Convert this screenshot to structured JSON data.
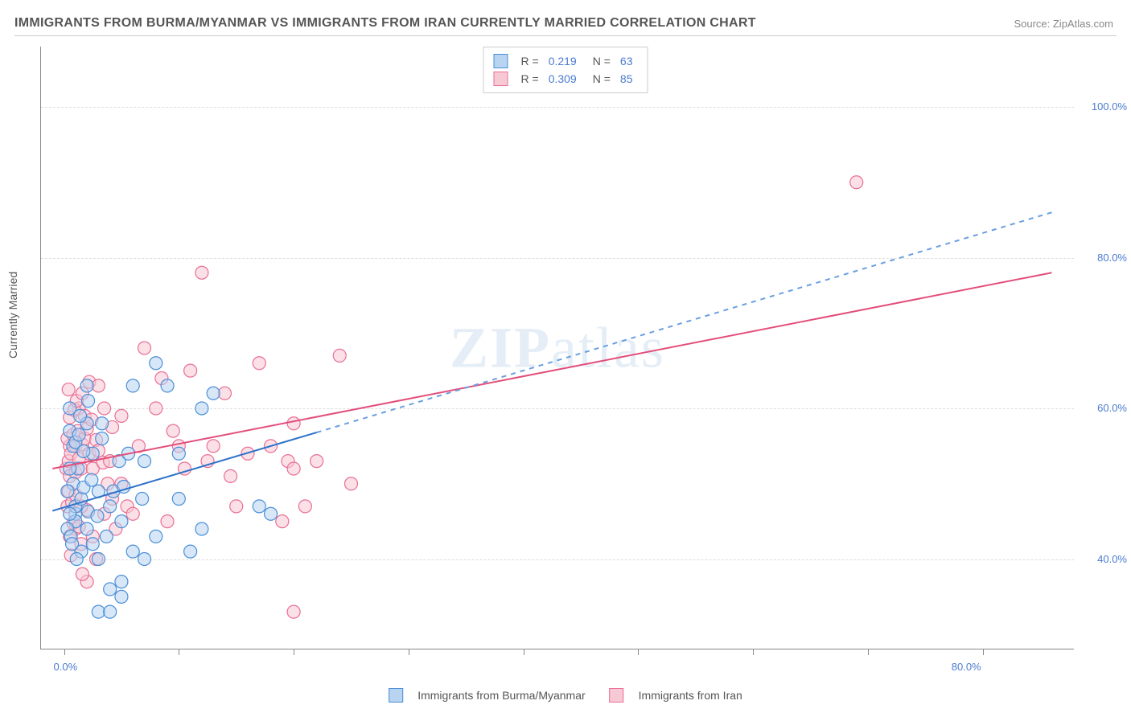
{
  "title": "IMMIGRANTS FROM BURMA/MYANMAR VS IMMIGRANTS FROM IRAN CURRENTLY MARRIED CORRELATION CHART",
  "source": "Source: ZipAtlas.com",
  "axis": {
    "y_title": "Currently Married",
    "y_ticks": [
      40.0,
      60.0,
      80.0,
      100.0
    ],
    "y_tick_labels": [
      "40.0%",
      "60.0%",
      "80.0%",
      "100.0%"
    ],
    "y_range": [
      28,
      108
    ],
    "x_ticks": [
      0,
      10,
      20,
      30,
      40,
      50,
      60,
      70,
      80
    ],
    "x_tick_labels_shown": {
      "0": "0.0%",
      "80": "80.0%"
    },
    "x_range": [
      -2,
      88
    ]
  },
  "colors": {
    "series_a_fill": "#b8d4f0",
    "series_a_stroke": "#4a8fd8",
    "series_b_fill": "#f7c9d4",
    "series_b_stroke": "#e96f94",
    "line_a": "#2f73c9",
    "line_a_dash": "#6a9fe0",
    "line_b": "#e34d7a",
    "grid": "#dddddd",
    "axis": "#888888",
    "text_blue": "#4a7bd0",
    "background": "#ffffff"
  },
  "marker_radius": 8,
  "stroke_width": 1.2,
  "line_width": 2,
  "legend_top": {
    "rows": [
      {
        "swatch_fill": "#b8d4f0",
        "swatch_stroke": "#4a8fd8",
        "r_label": "R =",
        "r_val": "0.219",
        "n_label": "N =",
        "n_val": "63"
      },
      {
        "swatch_fill": "#f7c9d4",
        "swatch_stroke": "#e96f94",
        "r_label": "R =",
        "r_val": "0.309",
        "n_label": "N =",
        "n_val": "85"
      }
    ]
  },
  "legend_bottom": {
    "items": [
      {
        "swatch_fill": "#b8d4f0",
        "swatch_stroke": "#4a8fd8",
        "label": "Immigrants from Burma/Myanmar"
      },
      {
        "swatch_fill": "#f7c9d4",
        "swatch_stroke": "#e96f94",
        "label": "Immigrants from Iran"
      }
    ]
  },
  "watermark": {
    "pre": "ZIP",
    "post": "atlas"
  },
  "series_a": {
    "name": "Immigrants from Burma/Myanmar",
    "points": [
      [
        0.5,
        57
      ],
      [
        1,
        46
      ],
      [
        1,
        47
      ],
      [
        1.5,
        48
      ],
      [
        1,
        45
      ],
      [
        2,
        44
      ],
      [
        0.8,
        50
      ],
      [
        1.2,
        52
      ],
      [
        2,
        58
      ],
      [
        1.5,
        41
      ],
      [
        2.5,
        42
      ],
      [
        3,
        40
      ],
      [
        3,
        49
      ],
      [
        4,
        47
      ],
      [
        4,
        36
      ],
      [
        5,
        37
      ],
      [
        5,
        35
      ],
      [
        3,
        33
      ],
      [
        4,
        33
      ],
      [
        5,
        45
      ],
      [
        6,
        41
      ],
      [
        6,
        63
      ],
      [
        7,
        40
      ],
      [
        7,
        53
      ],
      [
        8,
        43
      ],
      [
        8,
        66
      ],
      [
        9,
        63
      ],
      [
        10,
        48
      ],
      [
        10,
        54
      ],
      [
        11,
        41
      ],
      [
        12,
        60
      ],
      [
        13,
        62
      ],
      [
        17,
        47
      ],
      [
        18,
        46
      ],
      [
        12,
        44
      ],
      [
        2,
        63
      ],
      [
        0.5,
        60
      ],
      [
        0.8,
        55
      ],
      [
        1,
        55.5
      ],
      [
        1.3,
        56.5
      ],
      [
        2.5,
        54
      ],
      [
        1.7,
        54.3
      ],
      [
        3.3,
        56
      ],
      [
        0.5,
        52
      ],
      [
        0.3,
        49
      ],
      [
        0.3,
        44
      ],
      [
        0.6,
        43
      ],
      [
        1.7,
        49.5
      ],
      [
        2.4,
        50.5
      ],
      [
        0.7,
        42
      ],
      [
        1.1,
        40
      ],
      [
        2.1,
        46.3
      ],
      [
        2.9,
        45.7
      ],
      [
        0.5,
        46
      ],
      [
        3.7,
        43
      ],
      [
        4.3,
        49
      ],
      [
        6.8,
        48
      ],
      [
        5.2,
        49.6
      ],
      [
        4.8,
        53
      ],
      [
        3.3,
        58
      ],
      [
        2.1,
        61
      ],
      [
        5.6,
        54
      ],
      [
        1.4,
        59
      ]
    ],
    "trend_solid": {
      "x1": -1,
      "y1": 46.4,
      "x2": 22,
      "y2": 56.8
    },
    "trend_dash": {
      "x1": 22,
      "y1": 56.8,
      "x2": 86,
      "y2": 86
    }
  },
  "series_b": {
    "name": "Immigrants from Iran",
    "points": [
      [
        0.2,
        52
      ],
      [
        0.4,
        53
      ],
      [
        0.5,
        55
      ],
      [
        0.3,
        56
      ],
      [
        0.8,
        56.5
      ],
      [
        1,
        55
      ],
      [
        1.2,
        57
      ],
      [
        0.6,
        54
      ],
      [
        0.5,
        51
      ],
      [
        1,
        51.5
      ],
      [
        1.3,
        53.3
      ],
      [
        1.5,
        52
      ],
      [
        1.6,
        55.2
      ],
      [
        1.8,
        56
      ],
      [
        1.3,
        60
      ],
      [
        1.8,
        59
      ],
      [
        2,
        57.3
      ],
      [
        2.4,
        58.5
      ],
      [
        2.2,
        54
      ],
      [
        2.5,
        52
      ],
      [
        2.8,
        55.8
      ],
      [
        3,
        54.4
      ],
      [
        3.4,
        52.8
      ],
      [
        3.8,
        50
      ],
      [
        4,
        53
      ],
      [
        4.2,
        48
      ],
      [
        5,
        50
      ],
      [
        5.5,
        47
      ],
      [
        6,
        46
      ],
      [
        6.5,
        55
      ],
      [
        7,
        68
      ],
      [
        8,
        60
      ],
      [
        8.5,
        64
      ],
      [
        9,
        45
      ],
      [
        9.5,
        57
      ],
      [
        10,
        55
      ],
      [
        10.5,
        52
      ],
      [
        11,
        65
      ],
      [
        12,
        78
      ],
      [
        12.5,
        53
      ],
      [
        13,
        55
      ],
      [
        14,
        62
      ],
      [
        14.5,
        51
      ],
      [
        15,
        47
      ],
      [
        16,
        54
      ],
      [
        17,
        66
      ],
      [
        18,
        55
      ],
      [
        19,
        45
      ],
      [
        19.5,
        53
      ],
      [
        20,
        52
      ],
      [
        20,
        58
      ],
      [
        21,
        47
      ],
      [
        22,
        53
      ],
      [
        24,
        67
      ],
      [
        25,
        50
      ],
      [
        20,
        33
      ],
      [
        1,
        44
      ],
      [
        1.5,
        42
      ],
      [
        2,
        37
      ],
      [
        2.5,
        43
      ],
      [
        2.8,
        40
      ],
      [
        3.5,
        46
      ],
      [
        4.5,
        44
      ],
      [
        2,
        46.5
      ],
      [
        0.5,
        43
      ],
      [
        0.3,
        47
      ],
      [
        0.4,
        49
      ],
      [
        0.7,
        47.5
      ],
      [
        1,
        48.5
      ],
      [
        1.5,
        47
      ],
      [
        0.8,
        44.8
      ],
      [
        1.3,
        44.3
      ],
      [
        0.6,
        40.5
      ],
      [
        1.6,
        38
      ],
      [
        69,
        90
      ],
      [
        0.5,
        58.8
      ],
      [
        0.9,
        59.8
      ],
      [
        1.1,
        61
      ],
      [
        1.6,
        62
      ],
      [
        0.4,
        62.5
      ],
      [
        2.2,
        63.5
      ],
      [
        3,
        63
      ],
      [
        3.5,
        60
      ],
      [
        4.2,
        57.5
      ],
      [
        5,
        59
      ]
    ],
    "trend_solid": {
      "x1": -1,
      "y1": 52,
      "x2": 86,
      "y2": 78
    }
  }
}
